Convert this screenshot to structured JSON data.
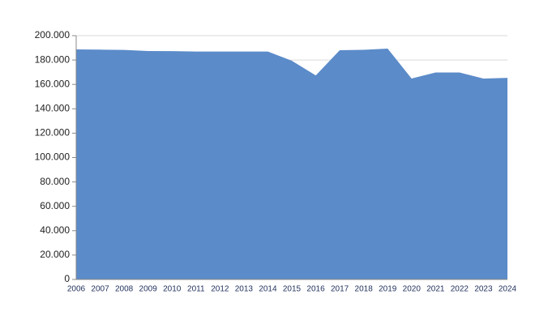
{
  "chart_data": {
    "type": "area",
    "categories": [
      "2006",
      "2007",
      "2008",
      "2009",
      "2010",
      "2011",
      "2012",
      "2013",
      "2014",
      "2015",
      "2016",
      "2017",
      "2018",
      "2019",
      "2020",
      "2021",
      "2022",
      "2023",
      "2024"
    ],
    "series": [
      {
        "color": "#5b8bc9",
        "values": [
          188700,
          188500,
          188300,
          187400,
          187300,
          187000,
          187000,
          187000,
          187000,
          179400,
          167400,
          188000,
          188400,
          189400,
          164800,
          169800,
          169800,
          164800,
          165400
        ]
      }
    ],
    "ylim": [
      0,
      200000
    ],
    "yticks": [
      0,
      {
        "value": 20000,
        "label": "20.000"
      },
      {
        "value": 40000,
        "label": "40.000"
      },
      {
        "value": 60000,
        "label": "60.000"
      },
      {
        "value": 80000,
        "label": "80.000"
      },
      {
        "value": 100000,
        "label": "100.000"
      },
      {
        "value": 120000,
        "label": "120.000"
      },
      {
        "value": 140000,
        "label": "140.000"
      },
      {
        "value": 160000,
        "label": "160.000"
      },
      {
        "value": 180000,
        "label": "180.000"
      },
      {
        "value": 200000,
        "label": "200.000"
      }
    ],
    "grid": true
  }
}
